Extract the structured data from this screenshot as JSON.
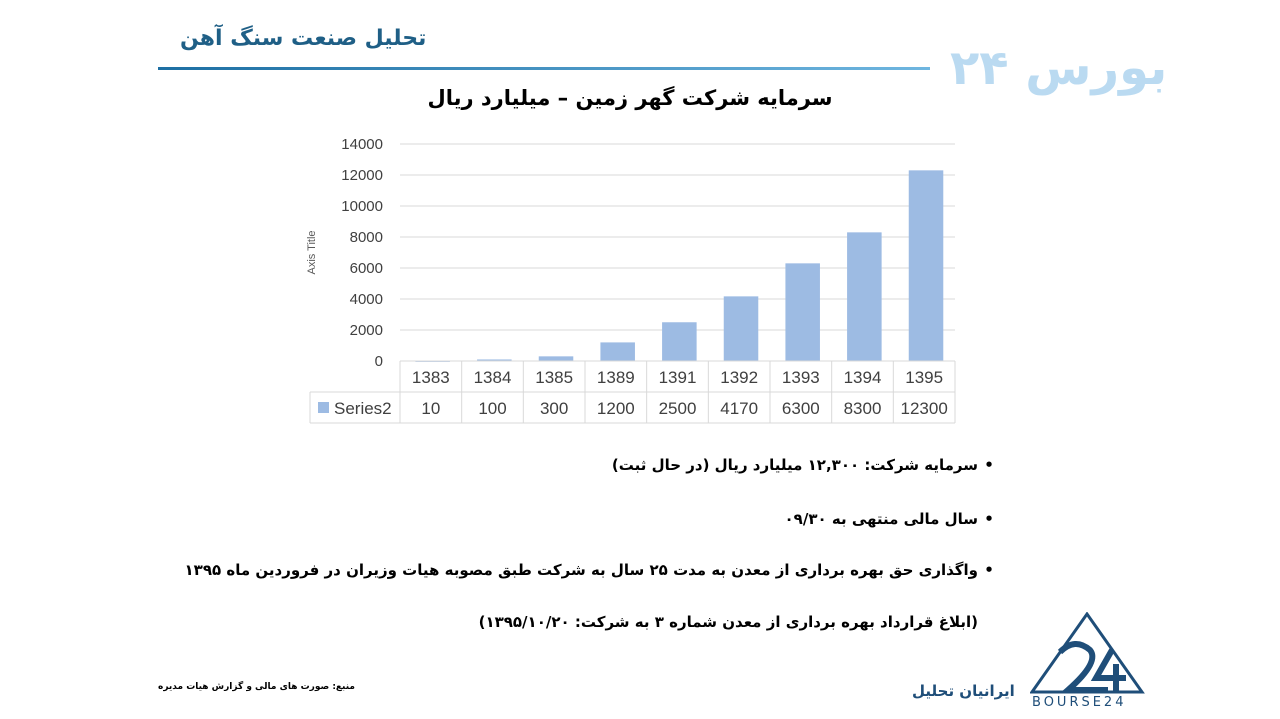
{
  "header": {
    "title": "تحلیل صنعت سنگ آهن",
    "watermark": "بورس ۲۴"
  },
  "chart_data": {
    "type": "bar",
    "title": "سرمایه شرکت گهر زمین – میلیارد ریال",
    "ylabel": "Axis Title",
    "xlabel": "",
    "ylim": [
      0,
      14000
    ],
    "yticks": [
      0,
      2000,
      4000,
      6000,
      8000,
      10000,
      12000,
      14000
    ],
    "grid": true,
    "categories": [
      "1383",
      "1384",
      "1385",
      "1389",
      "1391",
      "1392",
      "1393",
      "1394",
      "1395"
    ],
    "series": [
      {
        "name": "Series2",
        "values": [
          10,
          100,
          300,
          1200,
          2500,
          4170,
          6300,
          8300,
          12300
        ],
        "color": "#9dbbe3"
      }
    ],
    "data_table": true
  },
  "bullets": [
    "سرمایه شرکت: ۱۲,۳۰۰ میلیارد ریال (در حال ثبت)",
    "سال مالی منتهی به ۰۹/۳۰",
    "واگذاری حق بهره برداری از معدن به مدت ۲۵ سال به شرکت طبق مصوبه هیات وزیران در فروردین ماه ۱۳۹۵",
    "(ابلاغ قرارداد بهره برداری از معدن شماره ۳ به شرکت: ۱۳۹۵/۱۰/۲۰)"
  ],
  "bullet_marker": "•",
  "footer": {
    "source": "منبع: صورت های مالی و گزارش هیات مدیره",
    "name": "ایرانیان تحلیل",
    "logo_text": "BOURSE24"
  },
  "colors": {
    "header_blue": "#1f5f86",
    "bar": "#9dbbe3",
    "logo": "#1f4e79"
  }
}
